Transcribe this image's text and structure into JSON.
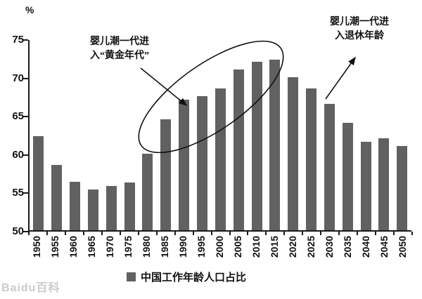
{
  "chart_data": {
    "type": "bar",
    "categories": [
      "1950",
      "1955",
      "1960",
      "1965",
      "1970",
      "1975",
      "1980",
      "1985",
      "1990",
      "1995",
      "2000",
      "2005",
      "2010",
      "2015",
      "2020",
      "2025",
      "2030",
      "2035",
      "2040",
      "2045",
      "2050"
    ],
    "values": [
      62.3,
      58.5,
      56.3,
      55.3,
      55.8,
      56.2,
      60.0,
      64.5,
      67.0,
      67.5,
      68.5,
      71.0,
      72.0,
      72.3,
      70.0,
      68.5,
      66.5,
      64.0,
      61.5,
      62.0,
      61.0
    ],
    "title": "",
    "xlabel": "",
    "ylabel": "%",
    "ylim": [
      50,
      75
    ],
    "yticks": [
      50,
      55,
      60,
      65,
      70,
      75
    ],
    "grid": false,
    "bar_color": "#616161",
    "legend_position": "bottom",
    "legend": [
      {
        "label": "中国工作年龄人口占比",
        "color": "#616161"
      }
    ],
    "annotations": [
      {
        "id": "golden-era",
        "lines": [
          "婴儿潮一代进",
          "入“黄金年代”"
        ]
      },
      {
        "id": "retirement",
        "lines": [
          "婴儿潮一代进",
          "入退休年龄"
        ]
      }
    ]
  },
  "watermark": "Baidu百科"
}
